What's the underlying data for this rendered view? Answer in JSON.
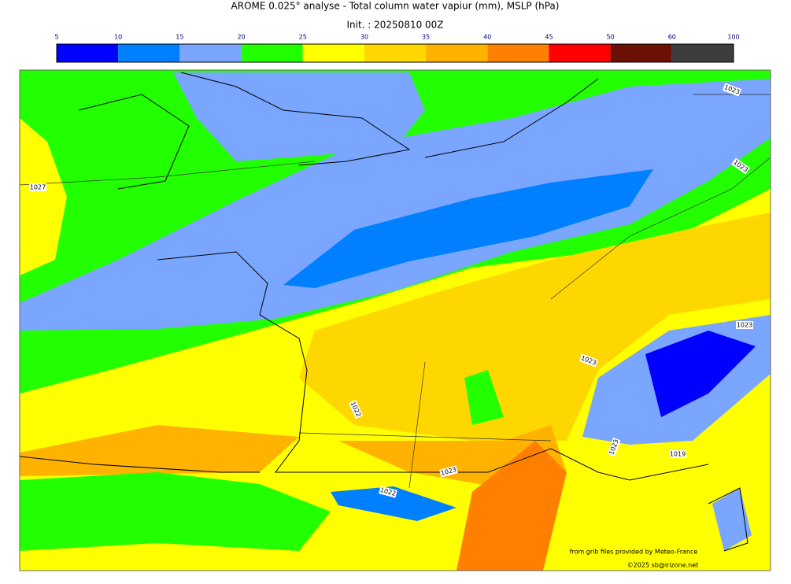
{
  "title": "AROME 0.025° analyse - Total column water vapiur (mm), MSLP (hPa)",
  "init": "Init. : 20250810 00Z",
  "colorbar": {
    "ticks": [
      5,
      10,
      15,
      20,
      25,
      30,
      35,
      40,
      45,
      50,
      60,
      100
    ],
    "colors": [
      "#0000ff",
      "#0080ff",
      "#7aa6ff",
      "#22ff00",
      "#ffff00",
      "#ffd700",
      "#ffb300",
      "#ff8000",
      "#ff0000",
      "#6b1005",
      "#3c3c3c"
    ]
  },
  "isobar_labels": [
    "1027",
    "1023",
    "1023",
    "1023",
    "1023",
    "1022",
    "1023",
    "1019",
    "1023",
    "1022"
  ],
  "credits": [
    "from grib files provided by Meteo-France",
    "©2025 sb@irizone.net"
  ]
}
